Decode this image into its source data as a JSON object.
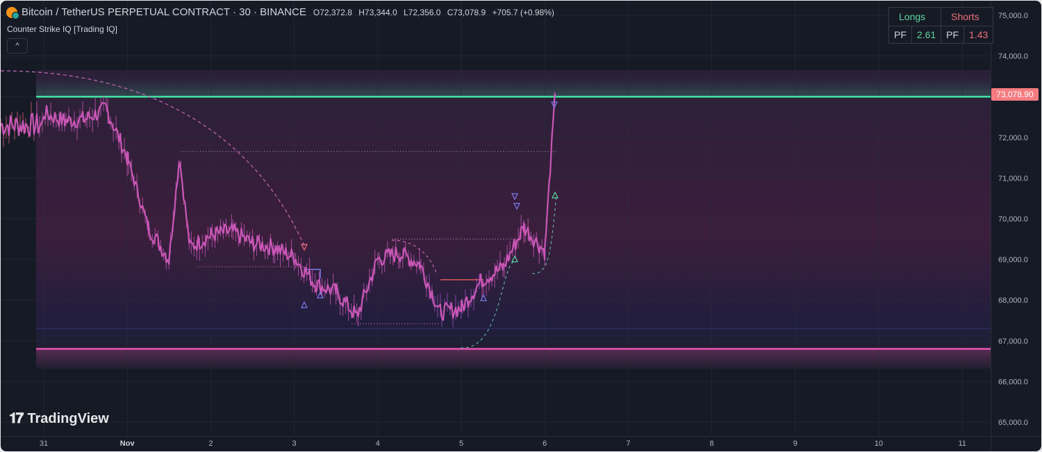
{
  "header": {
    "symbol_title": "Bitcoin / TetherUS PERPETUAL CONTRACT · 30 · BINANCE",
    "open_label": "O",
    "open": "72,372.8",
    "high_label": "H",
    "high": "73,344.0",
    "low_label": "L",
    "low": "72,356.0",
    "close_label": "C",
    "close": "73,078.9",
    "change": "+705.7 (+0.98%)"
  },
  "indicator": {
    "name": "Counter Strike IQ [Trading IQ]",
    "collapse_glyph": "^"
  },
  "pf_table": {
    "longs_header": "Longs",
    "shorts_header": "Shorts",
    "pf_label": "PF",
    "longs_pf": "2.61",
    "shorts_pf": "1.43"
  },
  "logo": {
    "mark": "𝟏𝟕",
    "text": "TradingView"
  },
  "last_price_label": "73,078.90",
  "colors": {
    "background": "#161a25",
    "upper_band": "#3fe0a0",
    "lower_band": "#f054b4",
    "candle_main": "#c957b6",
    "last_price": "#f77c80",
    "longs": "#5cd6a0",
    "shorts": "#f0707a",
    "stop_line": "#7b7cf0",
    "entry_line": "#e05a5a"
  },
  "chart_data": {
    "type": "line",
    "x_axis_type": "time",
    "x": [
      "2024-10-31 00:00",
      "2024-10-31 06:00",
      "2024-10-31 12:00",
      "2024-10-31 18:00",
      "2024-11-01 00:00",
      "2024-11-01 06:00",
      "2024-11-01 12:00",
      "2024-11-01 15:00",
      "2024-11-01 18:00",
      "2024-11-02 00:00",
      "2024-11-02 06:00",
      "2024-11-02 12:00",
      "2024-11-02 18:00",
      "2024-11-03 00:00",
      "2024-11-03 06:00",
      "2024-11-03 12:00",
      "2024-11-03 18:00",
      "2024-11-04 00:00",
      "2024-11-04 06:00",
      "2024-11-04 12:00",
      "2024-11-04 18:00",
      "2024-11-05 00:00",
      "2024-11-05 06:00",
      "2024-11-05 12:00",
      "2024-11-05 18:00",
      "2024-11-06 00:00",
      "2024-11-06 03:00"
    ],
    "series": [
      {
        "values": [
          72600,
          72400,
          72450,
          72700,
          71500,
          69800,
          69000,
          71500,
          69300,
          69600,
          69700,
          69400,
          69300,
          69050,
          68400,
          68200,
          67600,
          69000,
          69150,
          68900,
          67700,
          67800,
          68500,
          68800,
          69800,
          69200,
          73078.9
        ]
      }
    ],
    "x_ticks": [
      "31",
      "Nov",
      "2",
      "3",
      "4",
      "5",
      "6",
      "7",
      "8",
      "9",
      "10",
      "11"
    ],
    "y_ticks": [
      "75,000.0",
      "74,000.0",
      "73,000.0",
      "72,000.0",
      "71,000.0",
      "70,000.0",
      "69,000.0",
      "68,000.0",
      "67,000.0",
      "66,000.0",
      "65,000.0"
    ],
    "ylim": [
      64800,
      75200
    ],
    "horizontal_levels": {
      "upper_band": 73000,
      "lower_band": 66800,
      "last_price": 73078.9
    },
    "grid": true
  }
}
